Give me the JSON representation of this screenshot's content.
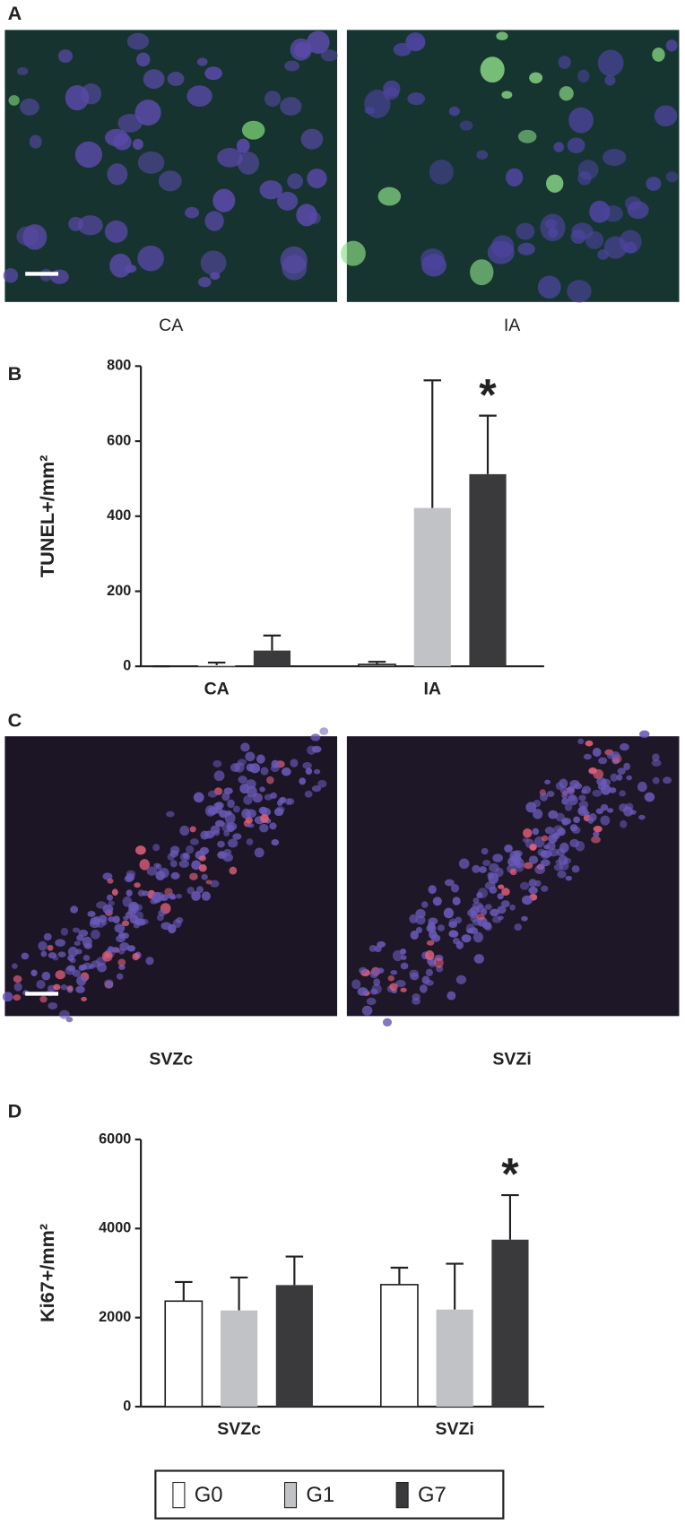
{
  "panel_labels": [
    "A",
    "B",
    "C",
    "D"
  ],
  "images": [
    {
      "caption": "CA"
    },
    {
      "caption": "IA"
    },
    {
      "caption": "SVZc"
    },
    {
      "caption": "SVZi"
    }
  ],
  "chart_data": [
    {
      "type": "bar",
      "y_label": "TUNEL+/mm²",
      "categories": [
        "CA",
        "IA"
      ],
      "series": [
        {
          "color": "#ffffff",
          "values": [
            0,
            5
          ],
          "errors": [
            0,
            7
          ]
        },
        {
          "color": "#c0c2c6",
          "values": [
            3,
            422
          ],
          "errors": [
            7,
            340
          ]
        },
        {
          "color": "#3a3a3c",
          "values": [
            42,
            512
          ],
          "errors": [
            40,
            156
          ]
        }
      ],
      "annotations": [
        {
          "text": "*",
          "series": 2,
          "category": 1
        }
      ],
      "ylim": [
        0,
        800
      ],
      "yticks": [
        0,
        200,
        400,
        600,
        800
      ]
    },
    {
      "type": "bar",
      "y_label": "Ki67+/mm²",
      "categories": [
        "SVZc",
        "SVZi"
      ],
      "series": [
        {
          "name": "G0",
          "color": "#ffffff",
          "values": [
            2370,
            2740
          ],
          "errors": [
            430,
            380
          ]
        },
        {
          "name": "G1",
          "color": "#c0c2c6",
          "values": [
            2160,
            2180
          ],
          "errors": [
            740,
            1030
          ]
        },
        {
          "name": "G7",
          "color": "#3a3a3c",
          "values": [
            2730,
            3750
          ],
          "errors": [
            640,
            1000
          ]
        }
      ],
      "annotations": [
        {
          "text": "*",
          "series": 2,
          "category": 1
        }
      ],
      "ylim": [
        0,
        6000
      ],
      "yticks": [
        0,
        2000,
        4000,
        6000
      ]
    }
  ]
}
